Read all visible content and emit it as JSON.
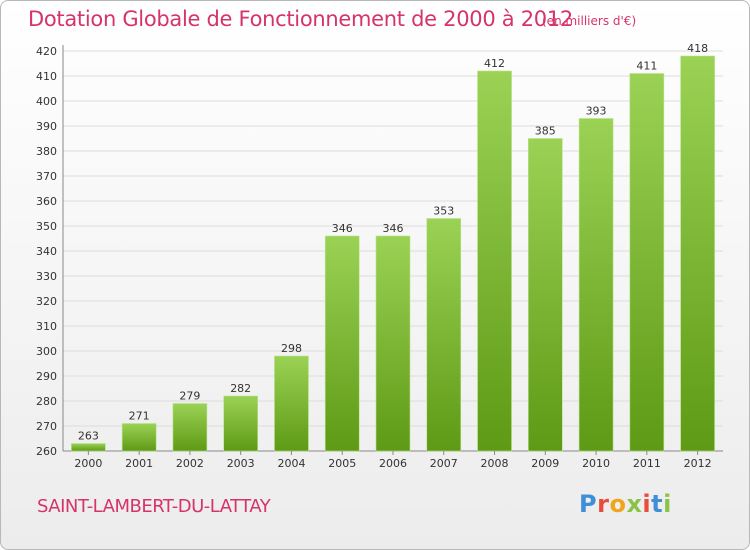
{
  "page": {
    "title": "Dotation Globale de Fonctionnement de 2000 à 2012",
    "subtitle": "(en milliers d'€)",
    "commune": "SAINT-LAMBERT-DU-LATTAY",
    "logo_text": "Proxiti"
  },
  "colors": {
    "title": "#d6336c",
    "bar_light": "#9bd255",
    "bar_dark": "#5e9a15",
    "grid": "#dcdcdc",
    "logo_letters": [
      "#3f8fd8",
      "#e74c3c",
      "#f1a51a",
      "#8bc34a",
      "#e74c3c",
      "#3f8fd8",
      "#8bc34a"
    ]
  },
  "chart_data": {
    "type": "bar",
    "title": "Dotation Globale de Fonctionnement de 2000 à 2012",
    "unit_note": "(en milliers d'€)",
    "categories": [
      "2000",
      "2001",
      "2002",
      "2003",
      "2004",
      "2005",
      "2006",
      "2007",
      "2008",
      "2009",
      "2010",
      "2011",
      "2012"
    ],
    "values": [
      263,
      271,
      279,
      282,
      298,
      346,
      346,
      353,
      412,
      385,
      393,
      411,
      418
    ],
    "ylim": [
      260,
      420
    ],
    "ytick_step": 10,
    "grid": true,
    "xlabel": "",
    "ylabel": ""
  }
}
